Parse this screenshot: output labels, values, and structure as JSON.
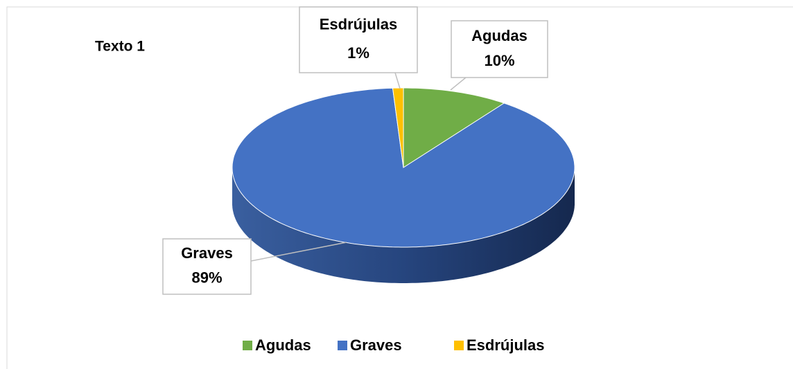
{
  "chart_data": {
    "type": "pie",
    "title": "Texto 1",
    "categories": [
      "Agudas",
      "Graves",
      "Esdrújulas"
    ],
    "values": [
      10,
      89,
      1
    ],
    "value_labels": [
      "10%",
      "89%",
      "1%"
    ],
    "colors": [
      "#70ad47",
      "#4472c4",
      "#ffc000"
    ],
    "legend": "bottom"
  }
}
